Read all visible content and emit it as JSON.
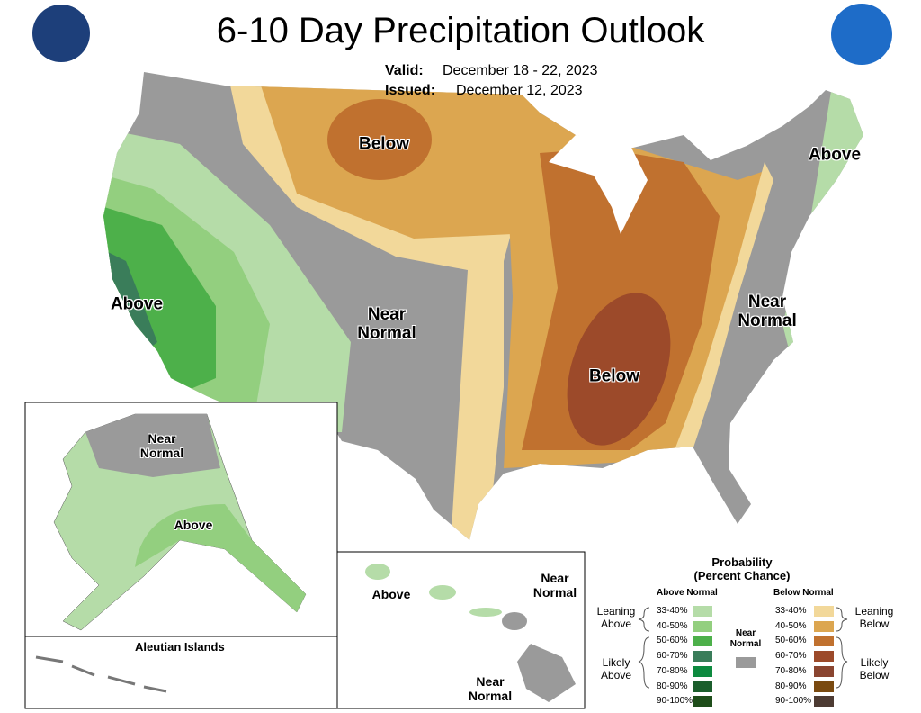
{
  "header": {
    "title": "6-10 Day Precipitation Outlook",
    "valid_label": "Valid:",
    "valid": "December 18 - 22, 2023",
    "issued_label": "Issued:",
    "issued": "December 12, 2023"
  },
  "map_labels": [
    {
      "text": "Below"
    },
    {
      "text": "Above"
    },
    {
      "text": "Near Normal"
    },
    {
      "text": "Below"
    },
    {
      "text": "Above"
    },
    {
      "text": "Near Normal"
    },
    {
      "text": "Near Normal"
    },
    {
      "text": "Above"
    },
    {
      "text": "Above"
    },
    {
      "text": "Near Normal"
    },
    {
      "text": "Near Normal"
    }
  ],
  "insets": {
    "aleutian": "Aleutian Islands"
  },
  "legend": {
    "title": "Probability",
    "subtitle": "(Percent Chance)",
    "above_header": "Above Normal",
    "below_header": "Below Normal",
    "near_normal": {
      "label": "Near Normal",
      "color": "#9a9a9a"
    },
    "leaning_above": "Leaning Above",
    "likely_above": "Likely Above",
    "leaning_below": "Leaning Below",
    "likely_below": "Likely Below",
    "above": [
      {
        "label": "33-40%",
        "color": "#b5dca8"
      },
      {
        "label": "40-50%",
        "color": "#93cf7f"
      },
      {
        "label": "50-60%",
        "color": "#4db04a"
      },
      {
        "label": "60-70%",
        "color": "#3a7d5a"
      },
      {
        "label": "70-80%",
        "color": "#0d8a3f"
      },
      {
        "label": "80-90%",
        "color": "#1b5e2c"
      },
      {
        "label": "90-100%",
        "color": "#1e4d1a"
      }
    ],
    "below": [
      {
        "label": "33-40%",
        "color": "#f2d89a"
      },
      {
        "label": "40-50%",
        "color": "#dca650"
      },
      {
        "label": "50-60%",
        "color": "#c0712f"
      },
      {
        "label": "60-70%",
        "color": "#9c4a2a"
      },
      {
        "label": "70-80%",
        "color": "#8a4530"
      },
      {
        "label": "80-90%",
        "color": "#7a4a10"
      },
      {
        "label": "90-100%",
        "color": "#4d3b33"
      }
    ]
  }
}
